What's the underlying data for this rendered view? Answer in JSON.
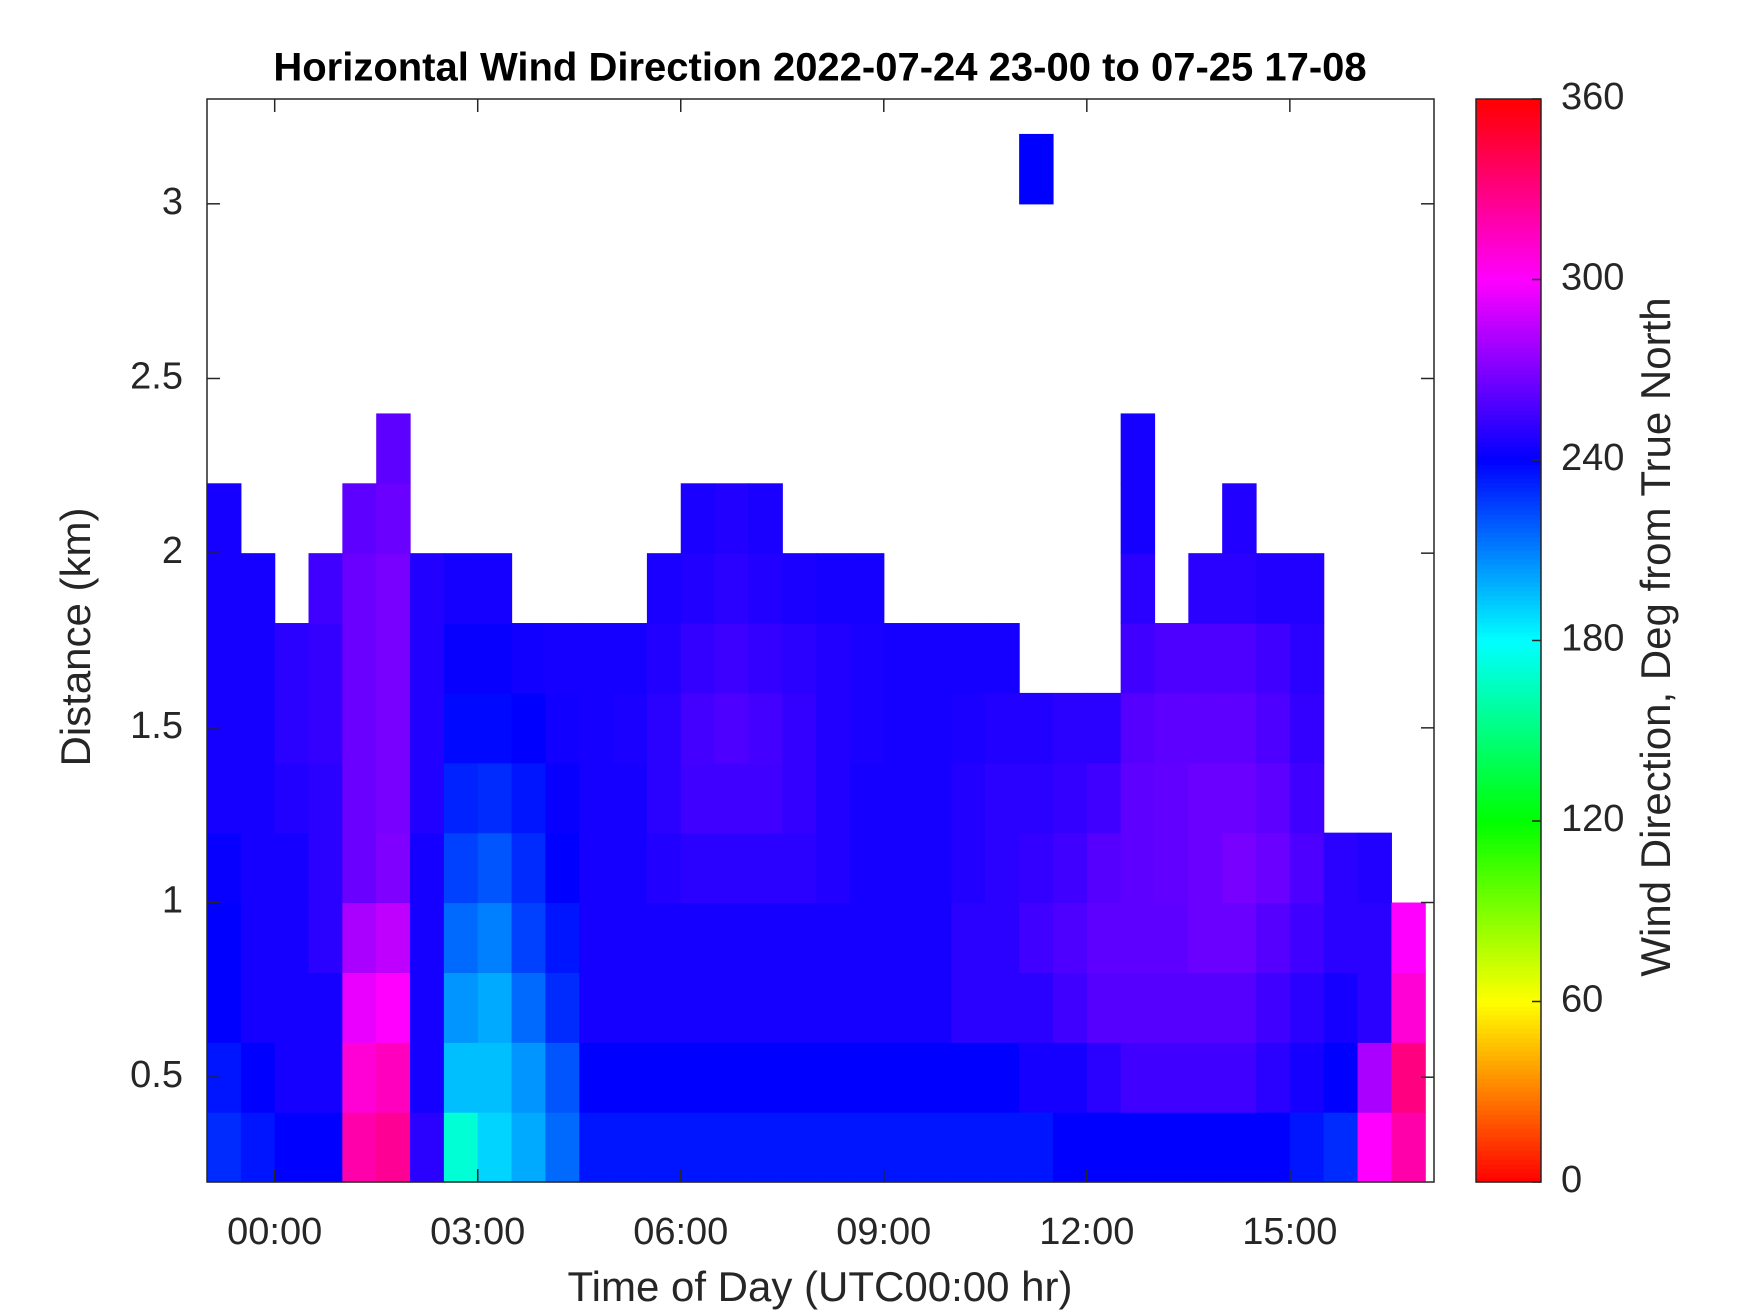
{
  "chart_data": {
    "type": "heatmap",
    "title": "Horizontal Wind Direction 2022-07-24 23-00 to 07-25 17-08",
    "xlabel": "Time of Day (UTC00:00 hr)",
    "ylabel": "Distance (km)",
    "colorbar_label": "Wind Direction, Deg from True North",
    "colormap": "hsv",
    "xlim": [
      -1,
      17.13
    ],
    "ylim": [
      0.2,
      3.3
    ],
    "zlim": [
      0,
      360
    ],
    "xticks": [
      {
        "value": 0,
        "label": "00:00"
      },
      {
        "value": 3,
        "label": "03:00"
      },
      {
        "value": 6,
        "label": "06:00"
      },
      {
        "value": 9,
        "label": "09:00"
      },
      {
        "value": 12,
        "label": "12:00"
      },
      {
        "value": 15,
        "label": "15:00"
      }
    ],
    "yticks": [
      0.5,
      1,
      1.5,
      2,
      2.5,
      3
    ],
    "zticks": [
      0,
      60,
      120,
      180,
      240,
      300,
      360
    ],
    "x_bins": [
      -1,
      -0.5,
      0,
      0.5,
      1,
      1.5,
      2,
      2.5,
      3,
      3.5,
      4,
      4.5,
      5,
      5.5,
      6,
      6.5,
      7,
      7.5,
      8,
      8.5,
      9,
      9.5,
      10,
      10.5,
      11,
      11.5,
      12,
      12.5,
      13,
      13.5,
      14,
      14.5,
      15,
      15.5,
      16,
      16.5,
      17
    ],
    "y_bins": [
      0.2,
      0.4,
      0.6,
      0.8,
      1.0,
      1.2,
      1.4,
      1.6,
      1.8,
      2.0,
      2.2,
      2.4,
      2.6,
      2.8,
      3.0,
      3.2
    ],
    "z": [
      [
        230,
        235,
        240,
        240,
        320,
        325,
        250,
        170,
        190,
        200,
        215,
        235,
        235,
        235,
        235,
        235,
        235,
        235,
        235,
        235,
        235,
        235,
        235,
        235,
        235,
        240,
        240,
        240,
        240,
        240,
        240,
        240,
        235,
        230,
        300,
        320
      ],
      [
        235,
        240,
        245,
        245,
        310,
        315,
        245,
        195,
        195,
        205,
        220,
        240,
        240,
        240,
        240,
        240,
        240,
        240,
        240,
        240,
        240,
        240,
        240,
        240,
        245,
        245,
        250,
        255,
        255,
        255,
        255,
        250,
        245,
        240,
        280,
        330
      ],
      [
        240,
        245,
        245,
        245,
        295,
        300,
        245,
        205,
        200,
        215,
        230,
        245,
        245,
        245,
        245,
        245,
        245,
        245,
        245,
        245,
        245,
        245,
        250,
        250,
        250,
        255,
        260,
        260,
        260,
        260,
        260,
        255,
        250,
        245,
        250,
        310
      ],
      [
        240,
        245,
        245,
        250,
        280,
        285,
        245,
        215,
        210,
        225,
        235,
        245,
        245,
        245,
        245,
        245,
        245,
        245,
        245,
        245,
        245,
        245,
        250,
        250,
        255,
        258,
        262,
        262,
        262,
        265,
        265,
        260,
        255,
        250,
        250,
        300
      ],
      [
        242,
        245,
        245,
        250,
        265,
        270,
        245,
        225,
        220,
        230,
        240,
        245,
        245,
        248,
        250,
        250,
        250,
        250,
        248,
        245,
        245,
        245,
        248,
        250,
        252,
        255,
        260,
        262,
        263,
        265,
        268,
        265,
        258,
        250,
        248,
        null
      ],
      [
        245,
        245,
        248,
        250,
        265,
        268,
        248,
        232,
        230,
        235,
        242,
        245,
        245,
        250,
        255,
        255,
        255,
        252,
        248,
        245,
        245,
        245,
        248,
        250,
        250,
        252,
        255,
        262,
        263,
        265,
        265,
        262,
        255,
        null,
        null,
        null
      ],
      [
        245,
        245,
        250,
        252,
        265,
        268,
        248,
        238,
        238,
        240,
        244,
        245,
        246,
        250,
        256,
        258,
        256,
        252,
        248,
        246,
        245,
        245,
        246,
        248,
        248,
        250,
        250,
        260,
        262,
        262,
        262,
        258,
        252,
        null,
        null,
        null
      ],
      [
        245,
        245,
        250,
        252,
        265,
        268,
        248,
        242,
        242,
        244,
        245,
        245,
        245,
        248,
        252,
        254,
        252,
        250,
        248,
        246,
        245,
        245,
        245,
        245,
        null,
        null,
        null,
        255,
        258,
        258,
        258,
        255,
        250,
        null,
        null,
        null
      ],
      [
        245,
        245,
        null,
        255,
        265,
        268,
        248,
        245,
        245,
        null,
        null,
        null,
        null,
        246,
        248,
        250,
        248,
        246,
        245,
        245,
        null,
        null,
        null,
        null,
        null,
        null,
        null,
        250,
        null,
        250,
        250,
        248,
        248,
        null,
        null,
        null
      ],
      [
        245,
        null,
        null,
        null,
        262,
        265,
        null,
        null,
        null,
        null,
        null,
        null,
        null,
        null,
        246,
        248,
        246,
        null,
        null,
        null,
        null,
        null,
        null,
        null,
        null,
        null,
        null,
        245,
        null,
        null,
        248,
        null,
        null,
        null,
        null,
        null
      ],
      [
        null,
        null,
        null,
        null,
        null,
        262,
        null,
        null,
        null,
        null,
        null,
        null,
        null,
        null,
        null,
        null,
        null,
        null,
        null,
        null,
        null,
        null,
        null,
        null,
        null,
        null,
        null,
        245,
        null,
        null,
        null,
        null,
        null,
        null,
        null,
        null
      ],
      [
        null,
        null,
        null,
        null,
        null,
        null,
        null,
        null,
        null,
        null,
        null,
        null,
        null,
        null,
        null,
        null,
        null,
        null,
        null,
        null,
        null,
        null,
        null,
        null,
        null,
        null,
        null,
        null,
        null,
        null,
        null,
        null,
        null,
        null,
        null,
        null
      ],
      [
        null,
        null,
        null,
        null,
        null,
        null,
        null,
        null,
        null,
        null,
        null,
        null,
        null,
        null,
        null,
        null,
        null,
        null,
        null,
        null,
        null,
        null,
        null,
        null,
        null,
        null,
        null,
        null,
        null,
        null,
        null,
        null,
        null,
        null,
        null,
        null
      ],
      [
        null,
        null,
        null,
        null,
        null,
        null,
        null,
        null,
        null,
        null,
        null,
        null,
        null,
        null,
        null,
        null,
        null,
        null,
        null,
        null,
        null,
        null,
        null,
        null,
        null,
        null,
        null,
        null,
        null,
        null,
        null,
        null,
        null,
        null,
        null,
        null
      ],
      [
        null,
        null,
        null,
        null,
        null,
        null,
        null,
        null,
        null,
        null,
        null,
        null,
        null,
        null,
        null,
        null,
        null,
        null,
        null,
        null,
        null,
        null,
        null,
        null,
        240,
        null,
        null,
        null,
        null,
        null,
        null,
        null,
        null,
        null,
        null,
        null
      ]
    ]
  }
}
